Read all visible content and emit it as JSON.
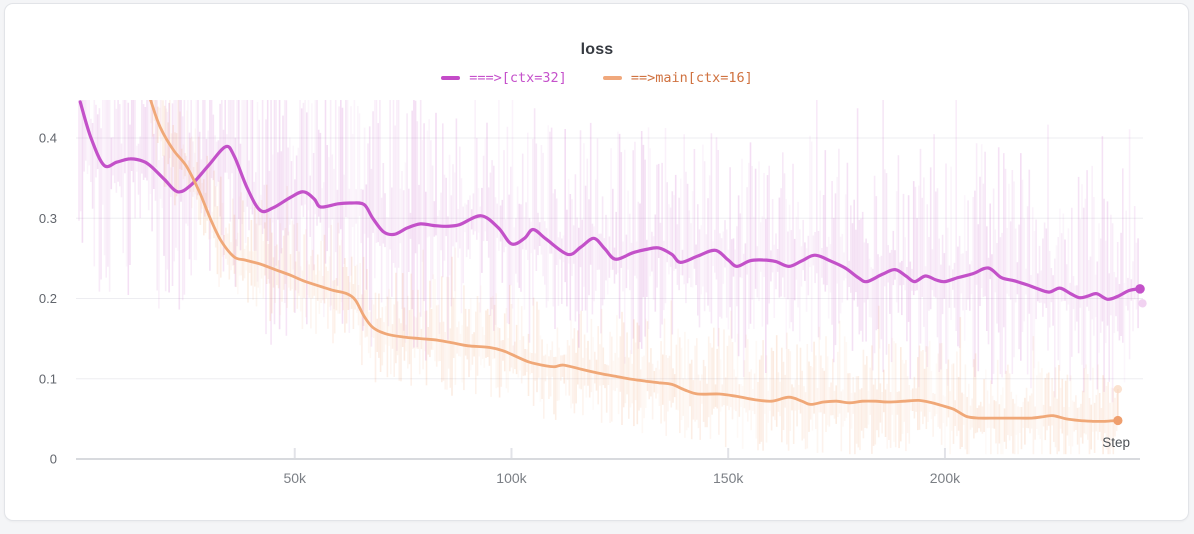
{
  "chart_data": {
    "type": "line",
    "title": "loss",
    "xlabel": "Step",
    "ylabel": "",
    "xlim": [
      0,
      245000
    ],
    "ylim": [
      0,
      0.447
    ],
    "grid": "horizontal",
    "legend_position": "top-center",
    "x_ticks": [
      {
        "value": 50000,
        "label": "50k"
      },
      {
        "value": 100000,
        "label": "100k"
      },
      {
        "value": 150000,
        "label": "150k"
      },
      {
        "value": 200000,
        "label": "200k"
      }
    ],
    "y_ticks": [
      {
        "value": 0,
        "label": "0"
      },
      {
        "value": 0.1,
        "label": "0.1"
      },
      {
        "value": 0.2,
        "label": "0.2"
      },
      {
        "value": 0.3,
        "label": "0.3"
      },
      {
        "value": 0.4,
        "label": "0.4"
      }
    ],
    "series": [
      {
        "name": "===>[ctx=32]",
        "color": "#c351c9",
        "noise_color": "#c75fc7",
        "line_width": 3.2,
        "raw_spread": 0.13,
        "final_step": 245000,
        "final_value": 0.212,
        "raw_final_value": 0.194,
        "points": [
          [
            500,
            0.445
          ],
          [
            3000,
            0.4
          ],
          [
            6000,
            0.366
          ],
          [
            9000,
            0.37
          ],
          [
            12000,
            0.374
          ],
          [
            15000,
            0.371
          ],
          [
            17000,
            0.364
          ],
          [
            20000,
            0.348
          ],
          [
            23000,
            0.333
          ],
          [
            26000,
            0.341
          ],
          [
            30000,
            0.365
          ],
          [
            34000,
            0.389
          ],
          [
            36000,
            0.378
          ],
          [
            39000,
            0.338
          ],
          [
            42000,
            0.31
          ],
          [
            45000,
            0.313
          ],
          [
            49000,
            0.326
          ],
          [
            52000,
            0.333
          ],
          [
            54500,
            0.324
          ],
          [
            56000,
            0.314
          ],
          [
            60000,
            0.318
          ],
          [
            63000,
            0.319
          ],
          [
            66000,
            0.317
          ],
          [
            68000,
            0.3
          ],
          [
            70500,
            0.283
          ],
          [
            73000,
            0.28
          ],
          [
            76000,
            0.288
          ],
          [
            79000,
            0.293
          ],
          [
            82000,
            0.291
          ],
          [
            85000,
            0.29
          ],
          [
            88000,
            0.292
          ],
          [
            93000,
            0.303
          ],
          [
            97000,
            0.288
          ],
          [
            100000,
            0.268
          ],
          [
            103000,
            0.275
          ],
          [
            105000,
            0.286
          ],
          [
            108000,
            0.274
          ],
          [
            113000,
            0.255
          ],
          [
            116000,
            0.264
          ],
          [
            119000,
            0.275
          ],
          [
            121500,
            0.262
          ],
          [
            124000,
            0.249
          ],
          [
            128000,
            0.257
          ],
          [
            131000,
            0.261
          ],
          [
            134000,
            0.263
          ],
          [
            137000,
            0.255
          ],
          [
            139000,
            0.245
          ],
          [
            143000,
            0.253
          ],
          [
            147000,
            0.26
          ],
          [
            150000,
            0.248
          ],
          [
            152000,
            0.24
          ],
          [
            155000,
            0.247
          ],
          [
            158000,
            0.248
          ],
          [
            161000,
            0.246
          ],
          [
            164000,
            0.24
          ],
          [
            167000,
            0.247
          ],
          [
            170000,
            0.254
          ],
          [
            173500,
            0.247
          ],
          [
            177000,
            0.238
          ],
          [
            180000,
            0.226
          ],
          [
            182000,
            0.221
          ],
          [
            185500,
            0.23
          ],
          [
            188500,
            0.236
          ],
          [
            191000,
            0.228
          ],
          [
            193000,
            0.221
          ],
          [
            195500,
            0.228
          ],
          [
            198000,
            0.223
          ],
          [
            200000,
            0.221
          ],
          [
            203000,
            0.226
          ],
          [
            206500,
            0.231
          ],
          [
            210000,
            0.238
          ],
          [
            213000,
            0.226
          ],
          [
            216000,
            0.222
          ],
          [
            219000,
            0.217
          ],
          [
            221000,
            0.213
          ],
          [
            224000,
            0.208
          ],
          [
            226500,
            0.213
          ],
          [
            229000,
            0.206
          ],
          [
            231000,
            0.201
          ],
          [
            233000,
            0.203
          ],
          [
            235000,
            0.206
          ],
          [
            237500,
            0.199
          ],
          [
            240000,
            0.203
          ],
          [
            242500,
            0.21
          ],
          [
            245000,
            0.212
          ]
        ]
      },
      {
        "name": "==>main[ctx=16]",
        "color": "#f0a878",
        "noise_color": "#efa06e",
        "line_width": 2.8,
        "raw_spread": 0.06,
        "final_step": 239900,
        "final_value": 0.048,
        "raw_final_value": 0.087,
        "points": [
          [
            15500,
            0.47
          ],
          [
            17000,
            0.443
          ],
          [
            19000,
            0.413
          ],
          [
            22000,
            0.385
          ],
          [
            25000,
            0.365
          ],
          [
            28000,
            0.333
          ],
          [
            30500,
            0.3
          ],
          [
            33000,
            0.272
          ],
          [
            36000,
            0.252
          ],
          [
            38500,
            0.248
          ],
          [
            42000,
            0.243
          ],
          [
            45000,
            0.237
          ],
          [
            49000,
            0.229
          ],
          [
            52000,
            0.222
          ],
          [
            56000,
            0.215
          ],
          [
            59000,
            0.21
          ],
          [
            62000,
            0.206
          ],
          [
            64000,
            0.198
          ],
          [
            66000,
            0.178
          ],
          [
            68000,
            0.164
          ],
          [
            71000,
            0.156
          ],
          [
            75000,
            0.152
          ],
          [
            79000,
            0.15
          ],
          [
            83000,
            0.148
          ],
          [
            87000,
            0.144
          ],
          [
            90000,
            0.141
          ],
          [
            95000,
            0.139
          ],
          [
            98000,
            0.135
          ],
          [
            101000,
            0.128
          ],
          [
            104000,
            0.121
          ],
          [
            108000,
            0.116
          ],
          [
            110000,
            0.115
          ],
          [
            112000,
            0.117
          ],
          [
            116000,
            0.112
          ],
          [
            120000,
            0.107
          ],
          [
            124000,
            0.103
          ],
          [
            127000,
            0.1
          ],
          [
            131000,
            0.097
          ],
          [
            134000,
            0.095
          ],
          [
            137000,
            0.093
          ],
          [
            140000,
            0.086
          ],
          [
            143000,
            0.081
          ],
          [
            148000,
            0.081
          ],
          [
            152000,
            0.078
          ],
          [
            156000,
            0.074
          ],
          [
            160000,
            0.072
          ],
          [
            164000,
            0.077
          ],
          [
            167000,
            0.072
          ],
          [
            169000,
            0.068
          ],
          [
            172000,
            0.071
          ],
          [
            175000,
            0.072
          ],
          [
            178000,
            0.07
          ],
          [
            181000,
            0.072
          ],
          [
            184000,
            0.072
          ],
          [
            187000,
            0.071
          ],
          [
            190500,
            0.072
          ],
          [
            194000,
            0.073
          ],
          [
            197000,
            0.07
          ],
          [
            199000,
            0.067
          ],
          [
            202000,
            0.062
          ],
          [
            205000,
            0.053
          ],
          [
            208000,
            0.051
          ],
          [
            212000,
            0.051
          ],
          [
            216000,
            0.051
          ],
          [
            220000,
            0.051
          ],
          [
            223000,
            0.053
          ],
          [
            225000,
            0.054
          ],
          [
            228000,
            0.05
          ],
          [
            231000,
            0.048
          ],
          [
            234000,
            0.047
          ],
          [
            237000,
            0.047
          ],
          [
            239900,
            0.048
          ]
        ]
      }
    ]
  },
  "legend": {
    "items": [
      {
        "label": "===>[ctx=32]",
        "dash_color": "#c44bc8",
        "text_color": "#c551cb"
      },
      {
        "label": "==>main[ctx=16]",
        "dash_color": "#f0a87c",
        "text_color": "#d07240"
      }
    ]
  },
  "colors": {
    "card_bg": "#ffffff",
    "card_border": "#e2e4e8",
    "page_bg": "#f4f5f7",
    "axis_line": "#d8dade",
    "grid_line": "#ededf1",
    "y_tick_text": "#61656c",
    "x_tick_text": "#7b7f85",
    "title_text": "#363a41"
  }
}
